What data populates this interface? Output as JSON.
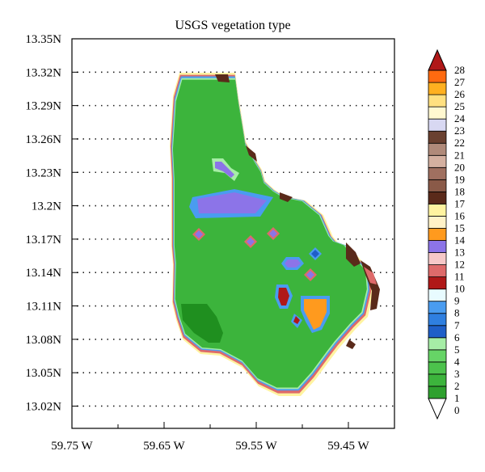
{
  "figure": {
    "title": "USGS vegetation type"
  },
  "chart_data": {
    "type": "map",
    "title": "USGS vegetation type",
    "xlim": [
      -59.75,
      -59.4
    ],
    "ylim": [
      13.0,
      13.35
    ],
    "x_ticks": [
      {
        "value": -59.75,
        "label": "59.75 W"
      },
      {
        "value": -59.65,
        "label": "59.65 W"
      },
      {
        "value": -59.55,
        "label": "59.55 W"
      },
      {
        "value": -59.45,
        "label": "59.45 W"
      }
    ],
    "y_ticks": [
      {
        "value": 13.35,
        "label": "13.35N"
      },
      {
        "value": 13.32,
        "label": "13.32N"
      },
      {
        "value": 13.29,
        "label": "13.29N"
      },
      {
        "value": 13.26,
        "label": "13.26N"
      },
      {
        "value": 13.23,
        "label": "13.23N"
      },
      {
        "value": 13.2,
        "label": "13.2N"
      },
      {
        "value": 13.17,
        "label": "13.17N"
      },
      {
        "value": 13.14,
        "label": "13.14N"
      },
      {
        "value": 13.11,
        "label": "13.11N"
      },
      {
        "value": 13.08,
        "label": "13.08N"
      },
      {
        "value": 13.05,
        "label": "13.05N"
      },
      {
        "value": 13.02,
        "label": "13.02N"
      }
    ],
    "gridlines": "dotted",
    "colorbar": {
      "placement": "right",
      "labels": [
        "0",
        "1",
        "2",
        "3",
        "4",
        "5",
        "6",
        "7",
        "8",
        "9",
        "10",
        "11",
        "12",
        "13",
        "14",
        "15",
        "16",
        "17",
        "18",
        "19",
        "20",
        "21",
        "22",
        "23",
        "24",
        "25",
        "26",
        "27",
        "28"
      ],
      "colors": [
        "#1f8f1f",
        "#2ea02e",
        "#3cb43c",
        "#4cc24c",
        "#66d466",
        "#a6eda6",
        "#1f5fc8",
        "#2f7fe0",
        "#4a9cf0",
        "#e8fbff",
        "#b01818",
        "#de6a6a",
        "#f6c8c8",
        "#8c74e8",
        "#ff9a1e",
        "#fff2c8",
        "#fff3a0",
        "#5a2a1a",
        "#8a5a48",
        "#a07060",
        "#d4b0a0",
        "#b08a7a",
        "#6a4030",
        "#d8d8f2",
        "#fff8d0",
        "#ffe080",
        "#ffb020",
        "#ff6a10",
        "#b01818"
      ]
    },
    "island": {
      "dominant_category": 2,
      "features": [
        {
          "category": 13,
          "description": "central patch"
        },
        {
          "category": 14,
          "description": "south-east patch"
        },
        {
          "category": 21,
          "description": "east coast strip"
        },
        {
          "category": 1,
          "description": "south-west patch"
        }
      ]
    }
  }
}
